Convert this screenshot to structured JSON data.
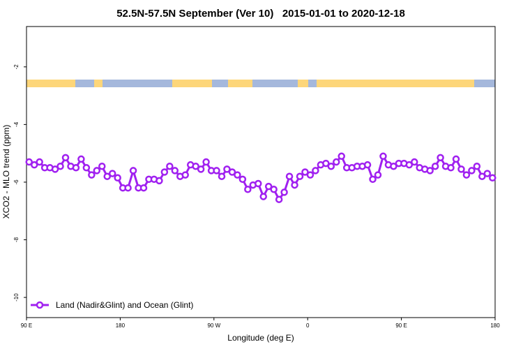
{
  "chart_data": {
    "type": "line",
    "title": "52.5N-57.5N September (Ver 10)   2015-01-01 to 2020-12-18",
    "x_label": "Longitude (deg E)",
    "y_label": "XCO2 - MLO trend (ppm)",
    "x": [
      -267.5,
      -262.5,
      -257.5,
      -252.5,
      -247.5,
      -242.5,
      -237.5,
      -232.5,
      -227.5,
      -222.5,
      -217.5,
      -212.5,
      -207.5,
      -202.5,
      -197.5,
      -192.5,
      -187.5,
      -182.5,
      -177.5,
      -172.5,
      -167.5,
      -162.5,
      -157.5,
      -152.5,
      -147.5,
      -142.5,
      -137.5,
      -132.5,
      -127.5,
      -122.5,
      -117.5,
      -112.5,
      -107.5,
      -102.5,
      -97.5,
      -92.5,
      -87.5,
      -82.5,
      -77.5,
      -72.5,
      -67.5,
      -62.5,
      -57.5,
      -52.5,
      -47.5,
      -42.5,
      -37.5,
      -32.5,
      -27.5,
      -22.5,
      -17.5,
      -12.5,
      -7.5,
      -2.5,
      2.5,
      7.5,
      12.5,
      17.5,
      22.5,
      27.5,
      32.5,
      37.5,
      42.5,
      47.5,
      52.5,
      57.5,
      62.5,
      67.5,
      72.5,
      77.5,
      82.5,
      87.5,
      92.5,
      97.5,
      102.5,
      107.5,
      112.5,
      117.5,
      122.5,
      127.5,
      132.5,
      137.5,
      142.5,
      147.5,
      152.5,
      157.5,
      162.5,
      167.5,
      172.5,
      177.5
    ],
    "series": [
      {
        "name": "Land (Nadir&Glint) and Ocean (Glint)",
        "color": "#a020f0",
        "values": [
          -5.3,
          -5.4,
          -5.3,
          -5.5,
          -5.5,
          -5.55,
          -5.45,
          -5.15,
          -5.45,
          -5.5,
          -5.2,
          -5.5,
          -5.75,
          -5.6,
          -5.45,
          -5.8,
          -5.7,
          -5.85,
          -6.2,
          -6.2,
          -5.6,
          -6.2,
          -6.2,
          -5.9,
          -5.9,
          -5.95,
          -5.65,
          -5.45,
          -5.6,
          -5.8,
          -5.75,
          -5.4,
          -5.45,
          -5.55,
          -5.3,
          -5.6,
          -5.6,
          -5.8,
          -5.55,
          -5.65,
          -5.75,
          -5.9,
          -6.25,
          -6.1,
          -6.05,
          -6.5,
          -6.15,
          -6.25,
          -6.6,
          -6.35,
          -5.8,
          -6.1,
          -5.8,
          -5.65,
          -5.75,
          -5.6,
          -5.4,
          -5.35,
          -5.45,
          -5.3,
          -5.1,
          -5.5,
          -5.5,
          -5.45,
          -5.45,
          -5.4,
          -5.9,
          -5.75,
          -5.1,
          -5.4,
          -5.45,
          -5.35,
          -5.35,
          -5.4,
          -5.3,
          -5.5,
          -5.55,
          -5.6,
          -5.45,
          -5.15,
          -5.45,
          -5.5,
          -5.2,
          -5.55,
          -5.75,
          -5.6,
          -5.45,
          -5.8,
          -5.7,
          -5.85
        ]
      }
    ],
    "xlim": [
      -270,
      180
    ],
    "xticks": [
      {
        "value": -270,
        "label": "90 E"
      },
      {
        "value": -180,
        "label": "180"
      },
      {
        "value": -90,
        "label": "90 W"
      },
      0,
      {
        "value": 90,
        "label": "90 E"
      },
      {
        "value": 180,
        "label": "180"
      }
    ],
    "ylim": [
      -10.7,
      -0.6
    ],
    "yticks": [
      -2,
      -4,
      -6,
      -8,
      -10
    ],
    "legend": "bottom left"
  }
}
